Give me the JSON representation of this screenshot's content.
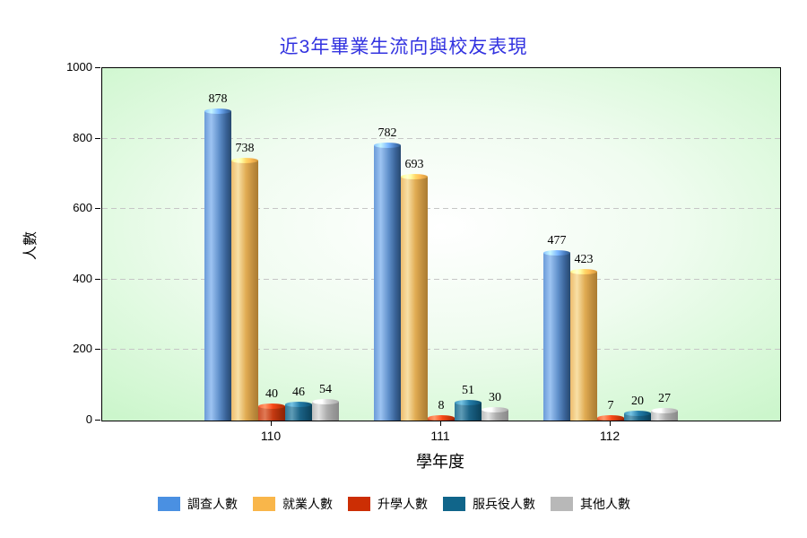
{
  "title": "近3年畢業生流向與校友表現",
  "title_color": "#3333e0",
  "chart_data": {
    "type": "bar",
    "categories": [
      "110",
      "111",
      "112"
    ],
    "series": [
      {
        "name": "調查人數",
        "color": "#4a90e2",
        "values": [
          878,
          782,
          477
        ]
      },
      {
        "name": "就業人數",
        "color": "#f9b64a",
        "values": [
          738,
          693,
          423
        ]
      },
      {
        "name": "升學人數",
        "color": "#cc2e04",
        "values": [
          40,
          8,
          7
        ]
      },
      {
        "name": "服兵役人數",
        "color": "#10658a",
        "values": [
          46,
          51,
          20
        ]
      },
      {
        "name": "其他人數",
        "color": "#b8b8b8",
        "values": [
          54,
          30,
          27
        ]
      }
    ],
    "xlabel": "學年度",
    "ylabel": "人數",
    "ylim": [
      0,
      1000
    ],
    "yticks": [
      0,
      200,
      400,
      600,
      800,
      1000
    ],
    "grid": "horizontal dashed",
    "gridline_color": "#c6c6c6",
    "plot_background": {
      "center": "#ffffff",
      "edge": "#ccf6cc"
    },
    "legend_position": "bottom"
  }
}
